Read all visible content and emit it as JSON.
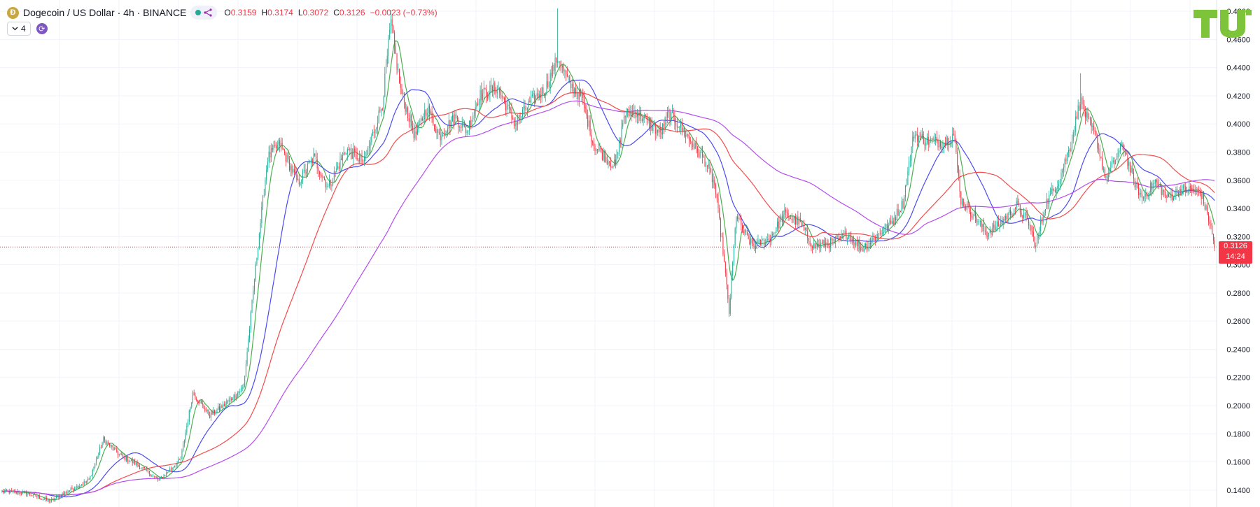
{
  "header": {
    "coin_glyph": "Ð",
    "symbol": "Dogecoin / US Dollar · 4h · BINANCE",
    "ohlc": {
      "o_label": "O",
      "o": "0.3159",
      "h_label": "H",
      "h": "0.3174",
      "l_label": "L",
      "l": "0.3072",
      "c_label": "C",
      "c": "0.3126",
      "change": "−0.0023 (−0.73%)"
    },
    "indicator_count": "4"
  },
  "colors": {
    "up": "#22ab94",
    "down": "#f23645",
    "ma_green": "#4caf50",
    "ma_blue": "#4b4bf0",
    "ma_red": "#f44b4b",
    "ma_purple": "#b44df0",
    "logo": "#7ec43a"
  },
  "icons": [
    "coin-icon",
    "share-icon",
    "chevron-down-icon",
    "sync-icon",
    "logo-icon"
  ],
  "chart_data": {
    "type": "line",
    "subtype": "candlestick",
    "title": "Dogecoin / US Dollar · 4h · BINANCE",
    "y_axis": {
      "ticks": [
        "0.4800",
        "0.4600",
        "0.4400",
        "0.4200",
        "0.4000",
        "0.3800",
        "0.3600",
        "0.3400",
        "0.3200",
        "0.3000",
        "0.2800",
        "0.2600",
        "0.2400",
        "0.2200",
        "0.2000",
        "0.1800",
        "0.1600",
        "0.1400"
      ],
      "ylim": [
        0.128,
        0.488
      ],
      "position": "right"
    },
    "grid": true,
    "last_price": {
      "value": 0.3126,
      "label": "0.3126",
      "countdown": "14:24"
    },
    "price_anchors": [
      [
        0,
        0.139
      ],
      [
        20,
        0.138
      ],
      [
        40,
        0.132
      ],
      [
        55,
        0.1395
      ],
      [
        72,
        0.147
      ],
      [
        84,
        0.176
      ],
      [
        97,
        0.165
      ],
      [
        112,
        0.158
      ],
      [
        130,
        0.147
      ],
      [
        148,
        0.162
      ],
      [
        158,
        0.209
      ],
      [
        172,
        0.193
      ],
      [
        185,
        0.201
      ],
      [
        200,
        0.213
      ],
      [
        212,
        0.315
      ],
      [
        220,
        0.376
      ],
      [
        230,
        0.386
      ],
      [
        245,
        0.358
      ],
      [
        258,
        0.376
      ],
      [
        270,
        0.355
      ],
      [
        285,
        0.382
      ],
      [
        300,
        0.373
      ],
      [
        315,
        0.415
      ],
      [
        322,
        0.472
      ],
      [
        330,
        0.424
      ],
      [
        342,
        0.391
      ],
      [
        352,
        0.412
      ],
      [
        362,
        0.391
      ],
      [
        375,
        0.405
      ],
      [
        385,
        0.395
      ],
      [
        395,
        0.42
      ],
      [
        410,
        0.426
      ],
      [
        425,
        0.4
      ],
      [
        438,
        0.416
      ],
      [
        450,
        0.425
      ],
      [
        460,
        0.447
      ],
      [
        470,
        0.428
      ],
      [
        480,
        0.419
      ],
      [
        490,
        0.385
      ],
      [
        500,
        0.376
      ],
      [
        508,
        0.37
      ],
      [
        515,
        0.406
      ],
      [
        525,
        0.409
      ],
      [
        535,
        0.401
      ],
      [
        545,
        0.393
      ],
      [
        552,
        0.407
      ],
      [
        560,
        0.4
      ],
      [
        570,
        0.388
      ],
      [
        582,
        0.374
      ],
      [
        590,
        0.357
      ],
      [
        597,
        0.31
      ],
      [
        602,
        0.266
      ],
      [
        608,
        0.336
      ],
      [
        614,
        0.323
      ],
      [
        622,
        0.313
      ],
      [
        635,
        0.318
      ],
      [
        648,
        0.336
      ],
      [
        660,
        0.33
      ],
      [
        672,
        0.313
      ],
      [
        688,
        0.316
      ],
      [
        700,
        0.322
      ],
      [
        712,
        0.311
      ],
      [
        725,
        0.321
      ],
      [
        736,
        0.329
      ],
      [
        746,
        0.344
      ],
      [
        755,
        0.393
      ],
      [
        765,
        0.388
      ],
      [
        780,
        0.387
      ],
      [
        788,
        0.393
      ],
      [
        794,
        0.346
      ],
      [
        805,
        0.335
      ],
      [
        815,
        0.322
      ],
      [
        825,
        0.328
      ],
      [
        840,
        0.342
      ],
      [
        850,
        0.33
      ],
      [
        856,
        0.313
      ],
      [
        864,
        0.343
      ],
      [
        875,
        0.36
      ],
      [
        885,
        0.386
      ],
      [
        893,
        0.418
      ],
      [
        898,
        0.404
      ],
      [
        906,
        0.39
      ],
      [
        914,
        0.36
      ],
      [
        920,
        0.371
      ],
      [
        928,
        0.386
      ],
      [
        936,
        0.362
      ],
      [
        944,
        0.347
      ],
      [
        955,
        0.359
      ],
      [
        965,
        0.347
      ],
      [
        975,
        0.353
      ],
      [
        985,
        0.353
      ],
      [
        993,
        0.35
      ],
      [
        1000,
        0.33
      ],
      [
        1004,
        0.3126
      ]
    ],
    "series": [
      {
        "name": "",
        "type": "moving-average",
        "color": "#4caf50",
        "period": 9
      },
      {
        "name": "",
        "type": "moving-average",
        "color": "#4b4bf0",
        "period": 34
      },
      {
        "name": "",
        "type": "moving-average",
        "color": "#f44b4b",
        "period": 75
      },
      {
        "name": "",
        "type": "moving-average",
        "color": "#b44df0",
        "period": 160
      }
    ]
  }
}
